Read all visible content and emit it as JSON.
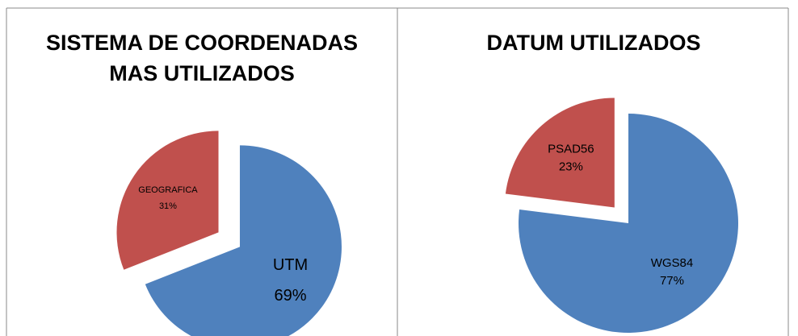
{
  "chart_data": [
    {
      "type": "pie",
      "title": "SISTEMA DE COORDENADAS MAS UTILIZADOS",
      "categories": [
        "UTM",
        "GEOGRAFICA"
      ],
      "values": [
        69,
        31
      ],
      "value_labels": [
        "69%",
        "31%"
      ],
      "colors": [
        "#4f81bd",
        "#c0504d"
      ]
    },
    {
      "type": "pie",
      "title": "DATUM UTILIZADOS",
      "categories": [
        "WGS84",
        "PSAD56"
      ],
      "values": [
        77,
        23
      ],
      "value_labels": [
        "77%",
        "23%"
      ],
      "colors": [
        "#4f81bd",
        "#c0504d"
      ]
    }
  ]
}
